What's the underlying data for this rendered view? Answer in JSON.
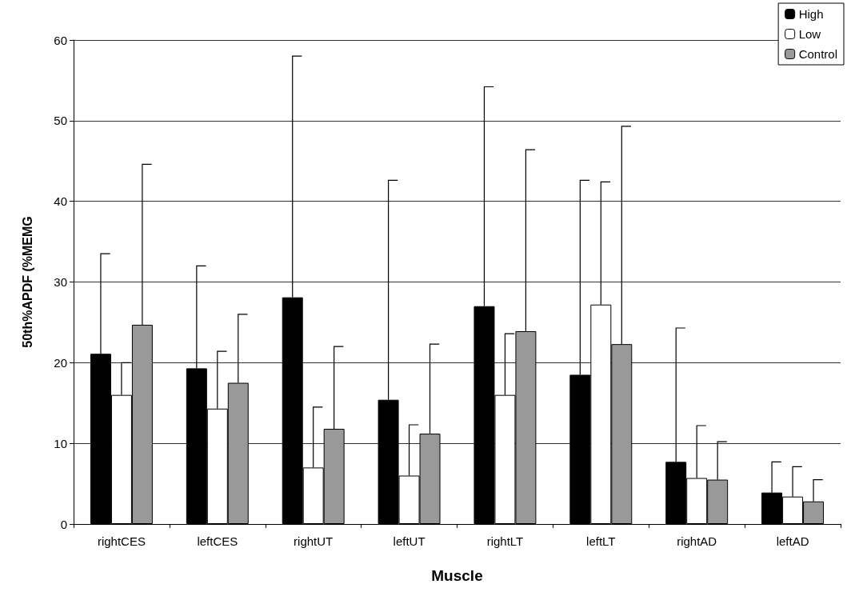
{
  "chart_data": {
    "type": "bar",
    "xlabel": "Muscle",
    "ylabel": "50th%APDF (%MEMG",
    "categories": [
      "rightCES",
      "leftCES",
      "rightUT",
      "leftUT",
      "rightLT",
      "leftLT",
      "rightAD",
      "leftAD"
    ],
    "series": [
      {
        "name": "High",
        "color": "#000000",
        "values": [
          21.1,
          19.3,
          28.1,
          15.4,
          27,
          18.5,
          7.7,
          3.9
        ],
        "errors": [
          [
            21.1,
            33.5
          ],
          [
            19.3,
            32
          ],
          [
            28.1,
            58
          ],
          [
            15.4,
            42.6
          ],
          [
            27,
            54.2
          ],
          [
            18.5,
            42.6
          ],
          [
            7.7,
            24.3
          ],
          [
            3.9,
            7.7
          ]
        ]
      },
      {
        "name": "Low",
        "color": "#ffffff",
        "values": [
          16,
          14.3,
          7,
          6,
          16,
          27.2,
          5.7,
          3.4
        ],
        "errors": [
          [
            16,
            20
          ],
          [
            14.3,
            21.4
          ],
          [
            7,
            14.5
          ],
          [
            6,
            12.3
          ],
          [
            16,
            23.6
          ],
          [
            27.2,
            42.4
          ],
          [
            5.7,
            12.2
          ],
          [
            3.4,
            7.1
          ]
        ]
      },
      {
        "name": "Control",
        "color": "#999999",
        "values": [
          24.7,
          17.5,
          11.8,
          11.2,
          23.9,
          22.3,
          5.5,
          2.8
        ],
        "errors": [
          [
            24.7,
            44.6
          ],
          [
            17.5,
            26
          ],
          [
            11.8,
            22
          ],
          [
            11.2,
            22.3
          ],
          [
            23.9,
            46.4
          ],
          [
            22.3,
            49.3
          ],
          [
            5.5,
            10.2
          ],
          [
            2.8,
            5.5
          ]
        ]
      }
    ],
    "ylim": [
      0,
      60
    ],
    "yticks": [
      0,
      10,
      20,
      30,
      40,
      50,
      60
    ],
    "grid": "y",
    "legend": "top right"
  }
}
